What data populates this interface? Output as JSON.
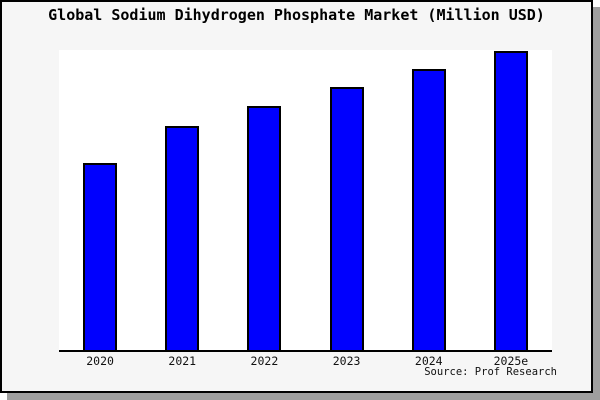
{
  "colors": {
    "bar_fill": "#0000fe",
    "bar_border": "#000000",
    "panel_background": "#f6f6f6",
    "plot_background": "#ffffff",
    "panel_border": "#000000",
    "shadow": "#9e9e9e",
    "text": "#000000"
  },
  "chart_data": {
    "type": "bar",
    "title": "Global Sodium Dihydrogen Phosphate Market (Million USD)",
    "categories": [
      "2020",
      "2021",
      "2022",
      "2023",
      "2024",
      "2025e"
    ],
    "values": [
      62.7,
      75.0,
      81.7,
      88.0,
      94.0,
      100.0
    ],
    "value_note": "y-axis has no ticks or labels; values are relative estimates read from bar heights with 2025e = 100",
    "xlabel": "",
    "ylabel": "",
    "ylim": [
      0,
      100.5
    ],
    "grid": false,
    "legend": false,
    "axes_shown": [
      "bottom"
    ],
    "source": "Source: Prof Research"
  }
}
